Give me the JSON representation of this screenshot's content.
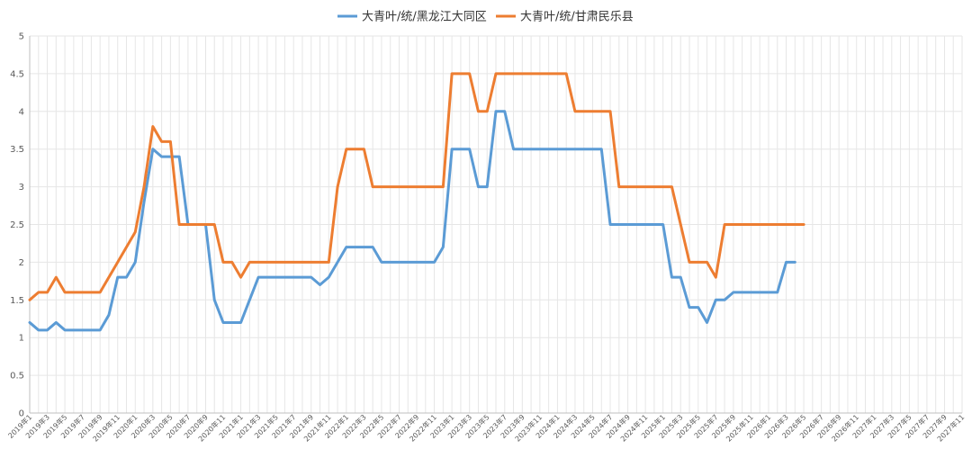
{
  "chart_data": {
    "type": "line",
    "title": "",
    "xlabel": "",
    "ylabel": "",
    "ylim": [
      0,
      5
    ],
    "ytick_step": 0.5,
    "grid": true,
    "legend_position": "top",
    "x_tick_labels": [
      "2019年1",
      "2019年3",
      "2019年5",
      "2019年7",
      "2019年9",
      "2019年11",
      "2020年1",
      "2020年3",
      "2020年5",
      "2020年7",
      "2020年9",
      "2020年11",
      "2021年1",
      "2021年3",
      "2021年5",
      "2021年7",
      "2021年9",
      "2021年11",
      "2022年1",
      "2022年3",
      "2022年5",
      "2022年7",
      "2022年9",
      "2022年11",
      "2023年1",
      "2023年3",
      "2023年5",
      "2023年7",
      "2023年9",
      "2023年11",
      "2024年1",
      "2024年3",
      "2024年5",
      "2024年7",
      "2024年9",
      "2024年11",
      "2025年1",
      "2025年3",
      "2025年5",
      "2025年7",
      "2025年9",
      "2025年11",
      "2026年1",
      "2026年3",
      "2026年5",
      "2026年7",
      "2026年9",
      "2026年11",
      "2027年1",
      "2027年3",
      "2027年5",
      "2027年7",
      "2027年9",
      "2027年11"
    ],
    "series": [
      {
        "name": "大青叶/统/黑龙江大同区",
        "color": "#5b9bd5",
        "points": [
          [
            "2019-01",
            1.2
          ],
          [
            "2019-02",
            1.1
          ],
          [
            "2019-03",
            1.1
          ],
          [
            "2019-04",
            1.2
          ],
          [
            "2019-05",
            1.1
          ],
          [
            "2019-06",
            1.1
          ],
          [
            "2019-07",
            1.1
          ],
          [
            "2019-08",
            1.1
          ],
          [
            "2019-09",
            1.1
          ],
          [
            "2019-10",
            1.3
          ],
          [
            "2019-11",
            1.8
          ],
          [
            "2019-12",
            1.8
          ],
          [
            "2020-01",
            2.0
          ],
          [
            "2020-02",
            2.8
          ],
          [
            "2020-03",
            3.5
          ],
          [
            "2020-04",
            3.4
          ],
          [
            "2020-05",
            3.4
          ],
          [
            "2020-06",
            3.4
          ],
          [
            "2020-07",
            2.5
          ],
          [
            "2020-08",
            2.5
          ],
          [
            "2020-09",
            2.5
          ],
          [
            "2020-10",
            1.5
          ],
          [
            "2020-11",
            1.2
          ],
          [
            "2020-12",
            1.2
          ],
          [
            "2021-01",
            1.2
          ],
          [
            "2021-02",
            1.5
          ],
          [
            "2021-03",
            1.8
          ],
          [
            "2021-04",
            1.8
          ],
          [
            "2021-05",
            1.8
          ],
          [
            "2021-06",
            1.8
          ],
          [
            "2021-07",
            1.8
          ],
          [
            "2021-08",
            1.8
          ],
          [
            "2021-09",
            1.8
          ],
          [
            "2021-10",
            1.7
          ],
          [
            "2021-11",
            1.8
          ],
          [
            "2021-12",
            2.0
          ],
          [
            "2022-01",
            2.2
          ],
          [
            "2022-02",
            2.2
          ],
          [
            "2022-03",
            2.2
          ],
          [
            "2022-04",
            2.2
          ],
          [
            "2022-05",
            2.0
          ],
          [
            "2022-06",
            2.0
          ],
          [
            "2022-07",
            2.0
          ],
          [
            "2022-08",
            2.0
          ],
          [
            "2022-09",
            2.0
          ],
          [
            "2022-10",
            2.0
          ],
          [
            "2022-11",
            2.0
          ],
          [
            "2022-12",
            2.2
          ],
          [
            "2023-01",
            3.5
          ],
          [
            "2023-02",
            3.5
          ],
          [
            "2023-03",
            3.5
          ],
          [
            "2023-04",
            3.0
          ],
          [
            "2023-05",
            3.0
          ],
          [
            "2023-06",
            4.0
          ],
          [
            "2023-07",
            4.0
          ],
          [
            "2023-08",
            3.5
          ],
          [
            "2023-09",
            3.5
          ],
          [
            "2023-10",
            3.5
          ],
          [
            "2023-11",
            3.5
          ],
          [
            "2023-12",
            3.5
          ],
          [
            "2024-01",
            3.5
          ],
          [
            "2024-02",
            3.5
          ],
          [
            "2024-03",
            3.5
          ],
          [
            "2024-04",
            3.5
          ],
          [
            "2024-05",
            3.5
          ],
          [
            "2024-06",
            3.5
          ],
          [
            "2024-07",
            2.5
          ],
          [
            "2024-08",
            2.5
          ],
          [
            "2024-09",
            2.5
          ],
          [
            "2024-10",
            2.5
          ],
          [
            "2024-11",
            2.5
          ],
          [
            "2024-12",
            2.5
          ],
          [
            "2025-01",
            2.5
          ],
          [
            "2025-02",
            1.8
          ],
          [
            "2025-03",
            1.8
          ],
          [
            "2025-04",
            1.4
          ],
          [
            "2025-05",
            1.4
          ],
          [
            "2025-06",
            1.2
          ],
          [
            "2025-07",
            1.5
          ],
          [
            "2025-08",
            1.5
          ],
          [
            "2025-09",
            1.6
          ],
          [
            "2025-10",
            1.6
          ],
          [
            "2025-11",
            1.6
          ],
          [
            "2025-12",
            1.6
          ],
          [
            "2026-01",
            1.6
          ],
          [
            "2026-02",
            1.6
          ],
          [
            "2026-03",
            2.0
          ],
          [
            "2026-04",
            2.0
          ]
        ]
      },
      {
        "name": "大青叶/统/甘肃民乐县",
        "color": "#ed7d31",
        "points": [
          [
            "2019-01",
            1.5
          ],
          [
            "2019-02",
            1.6
          ],
          [
            "2019-03",
            1.6
          ],
          [
            "2019-04",
            1.8
          ],
          [
            "2019-05",
            1.6
          ],
          [
            "2019-06",
            1.6
          ],
          [
            "2019-07",
            1.6
          ],
          [
            "2019-08",
            1.6
          ],
          [
            "2019-09",
            1.6
          ],
          [
            "2019-10",
            1.8
          ],
          [
            "2019-11",
            2.0
          ],
          [
            "2019-12",
            2.2
          ],
          [
            "2020-01",
            2.4
          ],
          [
            "2020-02",
            3.0
          ],
          [
            "2020-03",
            3.8
          ],
          [
            "2020-04",
            3.6
          ],
          [
            "2020-05",
            3.6
          ],
          [
            "2020-06",
            2.5
          ],
          [
            "2020-07",
            2.5
          ],
          [
            "2020-08",
            2.5
          ],
          [
            "2020-09",
            2.5
          ],
          [
            "2020-10",
            2.5
          ],
          [
            "2020-11",
            2.0
          ],
          [
            "2020-12",
            2.0
          ],
          [
            "2021-01",
            1.8
          ],
          [
            "2021-02",
            2.0
          ],
          [
            "2021-03",
            2.0
          ],
          [
            "2021-04",
            2.0
          ],
          [
            "2021-05",
            2.0
          ],
          [
            "2021-06",
            2.0
          ],
          [
            "2021-07",
            2.0
          ],
          [
            "2021-08",
            2.0
          ],
          [
            "2021-09",
            2.0
          ],
          [
            "2021-10",
            2.0
          ],
          [
            "2021-11",
            2.0
          ],
          [
            "2021-12",
            3.0
          ],
          [
            "2022-01",
            3.5
          ],
          [
            "2022-02",
            3.5
          ],
          [
            "2022-03",
            3.5
          ],
          [
            "2022-04",
            3.0
          ],
          [
            "2022-05",
            3.0
          ],
          [
            "2022-06",
            3.0
          ],
          [
            "2022-07",
            3.0
          ],
          [
            "2022-08",
            3.0
          ],
          [
            "2022-09",
            3.0
          ],
          [
            "2022-10",
            3.0
          ],
          [
            "2022-11",
            3.0
          ],
          [
            "2022-12",
            3.0
          ],
          [
            "2023-01",
            4.5
          ],
          [
            "2023-02",
            4.5
          ],
          [
            "2023-03",
            4.5
          ],
          [
            "2023-04",
            4.0
          ],
          [
            "2023-05",
            4.0
          ],
          [
            "2023-06",
            4.5
          ],
          [
            "2023-07",
            4.5
          ],
          [
            "2023-08",
            4.5
          ],
          [
            "2023-09",
            4.5
          ],
          [
            "2023-10",
            4.5
          ],
          [
            "2023-11",
            4.5
          ],
          [
            "2023-12",
            4.5
          ],
          [
            "2024-01",
            4.5
          ],
          [
            "2024-02",
            4.5
          ],
          [
            "2024-03",
            4.0
          ],
          [
            "2024-04",
            4.0
          ],
          [
            "2024-05",
            4.0
          ],
          [
            "2024-06",
            4.0
          ],
          [
            "2024-07",
            4.0
          ],
          [
            "2024-08",
            3.0
          ],
          [
            "2024-09",
            3.0
          ],
          [
            "2024-10",
            3.0
          ],
          [
            "2024-11",
            3.0
          ],
          [
            "2024-12",
            3.0
          ],
          [
            "2025-01",
            3.0
          ],
          [
            "2025-02",
            3.0
          ],
          [
            "2025-03",
            2.5
          ],
          [
            "2025-04",
            2.0
          ],
          [
            "2025-05",
            2.0
          ],
          [
            "2025-06",
            2.0
          ],
          [
            "2025-07",
            1.8
          ],
          [
            "2025-08",
            2.5
          ],
          [
            "2025-09",
            2.5
          ],
          [
            "2025-10",
            2.5
          ],
          [
            "2025-11",
            2.5
          ],
          [
            "2025-12",
            2.5
          ],
          [
            "2026-01",
            2.5
          ],
          [
            "2026-02",
            2.5
          ],
          [
            "2026-03",
            2.5
          ],
          [
            "2026-04",
            2.5
          ],
          [
            "2026-05",
            2.5
          ]
        ]
      }
    ]
  }
}
